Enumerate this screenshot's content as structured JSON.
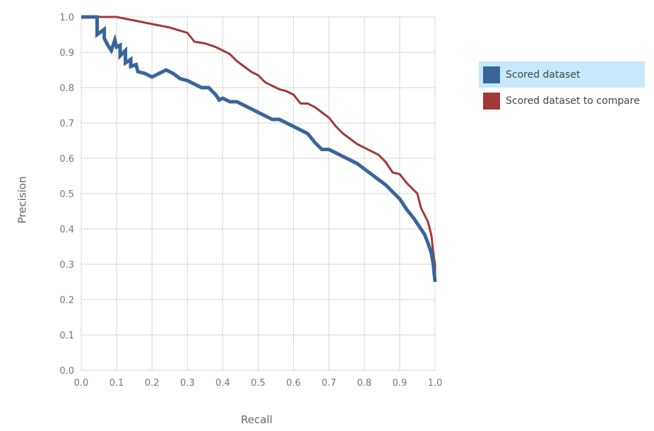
{
  "chart_data": {
    "type": "line",
    "xlabel": "Recall",
    "ylabel": "Precision",
    "xlim": [
      0.0,
      1.0
    ],
    "ylim": [
      0.0,
      1.0
    ],
    "xticks": [
      "0.0",
      "0.1",
      "0.2",
      "0.3",
      "0.4",
      "0.5",
      "0.6",
      "0.7",
      "0.8",
      "0.9",
      "1.0"
    ],
    "yticks": [
      "0.0",
      "0.1",
      "0.2",
      "0.3",
      "0.4",
      "0.5",
      "0.6",
      "0.7",
      "0.8",
      "0.9",
      "1.0"
    ],
    "grid": true,
    "legend_position": "right",
    "series": [
      {
        "name": "Scored dataset",
        "color": "#3a6599",
        "highlighted": true,
        "points": [
          [
            0.0,
            1.0
          ],
          [
            0.04,
            1.0
          ],
          [
            0.045,
            1.0
          ],
          [
            0.045,
            0.95
          ],
          [
            0.065,
            0.965
          ],
          [
            0.065,
            0.94
          ],
          [
            0.075,
            0.92
          ],
          [
            0.085,
            0.905
          ],
          [
            0.095,
            0.935
          ],
          [
            0.1,
            0.915
          ],
          [
            0.11,
            0.92
          ],
          [
            0.11,
            0.89
          ],
          [
            0.125,
            0.905
          ],
          [
            0.125,
            0.87
          ],
          [
            0.14,
            0.88
          ],
          [
            0.14,
            0.86
          ],
          [
            0.155,
            0.865
          ],
          [
            0.16,
            0.845
          ],
          [
            0.18,
            0.84
          ],
          [
            0.2,
            0.83
          ],
          [
            0.22,
            0.84
          ],
          [
            0.24,
            0.85
          ],
          [
            0.26,
            0.84
          ],
          [
            0.28,
            0.825
          ],
          [
            0.3,
            0.82
          ],
          [
            0.32,
            0.81
          ],
          [
            0.34,
            0.8
          ],
          [
            0.36,
            0.8
          ],
          [
            0.37,
            0.79
          ],
          [
            0.38,
            0.78
          ],
          [
            0.39,
            0.765
          ],
          [
            0.4,
            0.77
          ],
          [
            0.42,
            0.76
          ],
          [
            0.44,
            0.76
          ],
          [
            0.46,
            0.75
          ],
          [
            0.48,
            0.74
          ],
          [
            0.5,
            0.73
          ],
          [
            0.52,
            0.72
          ],
          [
            0.54,
            0.71
          ],
          [
            0.56,
            0.71
          ],
          [
            0.58,
            0.7
          ],
          [
            0.6,
            0.69
          ],
          [
            0.62,
            0.68
          ],
          [
            0.64,
            0.67
          ],
          [
            0.66,
            0.645
          ],
          [
            0.68,
            0.625
          ],
          [
            0.7,
            0.625
          ],
          [
            0.72,
            0.615
          ],
          [
            0.74,
            0.605
          ],
          [
            0.76,
            0.595
          ],
          [
            0.78,
            0.585
          ],
          [
            0.8,
            0.57
          ],
          [
            0.82,
            0.555
          ],
          [
            0.84,
            0.54
          ],
          [
            0.86,
            0.525
          ],
          [
            0.88,
            0.505
          ],
          [
            0.9,
            0.485
          ],
          [
            0.92,
            0.455
          ],
          [
            0.94,
            0.43
          ],
          [
            0.96,
            0.4
          ],
          [
            0.97,
            0.385
          ],
          [
            0.98,
            0.36
          ],
          [
            0.99,
            0.33
          ],
          [
            0.995,
            0.3
          ],
          [
            1.0,
            0.25
          ]
        ]
      },
      {
        "name": "Scored dataset to compare",
        "color": "#a13a37",
        "highlighted": false,
        "points": [
          [
            0.0,
            1.0
          ],
          [
            0.05,
            1.0
          ],
          [
            0.1,
            1.0
          ],
          [
            0.15,
            0.99
          ],
          [
            0.2,
            0.98
          ],
          [
            0.25,
            0.97
          ],
          [
            0.3,
            0.955
          ],
          [
            0.32,
            0.93
          ],
          [
            0.35,
            0.925
          ],
          [
            0.38,
            0.915
          ],
          [
            0.4,
            0.905
          ],
          [
            0.42,
            0.895
          ],
          [
            0.44,
            0.875
          ],
          [
            0.46,
            0.86
          ],
          [
            0.48,
            0.845
          ],
          [
            0.5,
            0.835
          ],
          [
            0.52,
            0.815
          ],
          [
            0.54,
            0.805
          ],
          [
            0.56,
            0.795
          ],
          [
            0.58,
            0.79
          ],
          [
            0.6,
            0.78
          ],
          [
            0.62,
            0.755
          ],
          [
            0.64,
            0.755
          ],
          [
            0.66,
            0.745
          ],
          [
            0.68,
            0.73
          ],
          [
            0.7,
            0.715
          ],
          [
            0.72,
            0.69
          ],
          [
            0.74,
            0.67
          ],
          [
            0.76,
            0.655
          ],
          [
            0.78,
            0.64
          ],
          [
            0.8,
            0.63
          ],
          [
            0.82,
            0.62
          ],
          [
            0.84,
            0.61
          ],
          [
            0.86,
            0.59
          ],
          [
            0.88,
            0.56
          ],
          [
            0.9,
            0.555
          ],
          [
            0.92,
            0.53
          ],
          [
            0.94,
            0.51
          ],
          [
            0.95,
            0.5
          ],
          [
            0.96,
            0.46
          ],
          [
            0.97,
            0.44
          ],
          [
            0.98,
            0.42
          ],
          [
            0.99,
            0.38
          ],
          [
            0.995,
            0.33
          ],
          [
            1.0,
            0.3
          ],
          [
            1.0,
            0.25
          ]
        ]
      }
    ]
  }
}
